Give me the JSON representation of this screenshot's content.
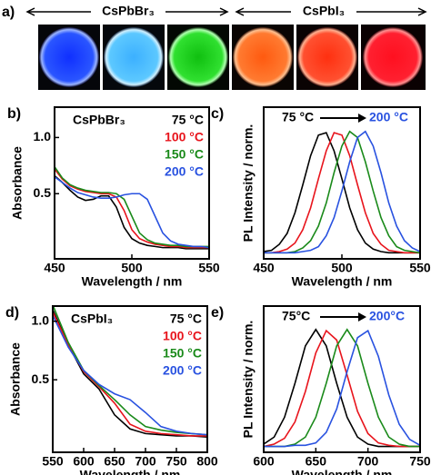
{
  "panel_a": {
    "label": "a)",
    "groups": [
      "CsPbBr₃",
      "CsPbI₃"
    ]
  },
  "chart_data": [
    {
      "type": "line",
      "panel_label": "b)",
      "title": "CsPbBr₃",
      "xlabel": "Wavelength / nm",
      "ylabel": "Absorbance",
      "x": [
        450,
        455,
        460,
        465,
        470,
        475,
        480,
        485,
        490,
        495,
        500,
        505,
        510,
        515,
        520,
        525,
        530,
        535,
        540,
        545,
        550
      ],
      "series": [
        {
          "name": "75 °C",
          "color": "#000000",
          "values": [
            0.66,
            0.6,
            0.53,
            0.47,
            0.44,
            0.45,
            0.48,
            0.48,
            0.38,
            0.2,
            0.1,
            0.06,
            0.04,
            0.03,
            0.02,
            0.02,
            0.02,
            0.01,
            0.01,
            0.01,
            0.01
          ]
        },
        {
          "name": "100 °C",
          "color": "#e8141c",
          "values": [
            0.72,
            0.63,
            0.57,
            0.54,
            0.52,
            0.51,
            0.5,
            0.5,
            0.47,
            0.35,
            0.18,
            0.1,
            0.07,
            0.05,
            0.04,
            0.03,
            0.03,
            0.02,
            0.02,
            0.02,
            0.02
          ]
        },
        {
          "name": "150 °C",
          "color": "#1a8a1a",
          "values": [
            0.74,
            0.64,
            0.58,
            0.55,
            0.53,
            0.52,
            0.51,
            0.51,
            0.5,
            0.45,
            0.3,
            0.15,
            0.09,
            0.06,
            0.05,
            0.04,
            0.04,
            0.03,
            0.03,
            0.03,
            0.03
          ]
        },
        {
          "name": "200 °C",
          "color": "#2952e0",
          "values": [
            0.65,
            0.6,
            0.55,
            0.51,
            0.49,
            0.47,
            0.46,
            0.46,
            0.47,
            0.49,
            0.5,
            0.5,
            0.45,
            0.3,
            0.15,
            0.08,
            0.05,
            0.04,
            0.03,
            0.03,
            0.02
          ]
        }
      ],
      "xlim": [
        450,
        550
      ],
      "xticks": [
        450,
        500,
        550
      ],
      "ylim": [
        -0.08,
        1.27
      ],
      "yticks": [
        0.5,
        {
          "value": 1,
          "label": "1.0"
        }
      ],
      "legend": "upper right"
    },
    {
      "type": "line",
      "panel_label": "c)",
      "xlabel": "Wavelength / nm",
      "ylabel": "PL Intensity / norm.",
      "annotations": [
        "75 °C",
        "200 °C"
      ],
      "x": [
        450,
        455,
        460,
        465,
        470,
        475,
        480,
        485,
        490,
        495,
        500,
        505,
        510,
        515,
        520,
        525,
        530,
        535,
        540,
        545,
        550
      ],
      "series": [
        {
          "color": "#000000",
          "values": [
            0.01,
            0.02,
            0.07,
            0.16,
            0.33,
            0.56,
            0.8,
            0.97,
            0.99,
            0.84,
            0.61,
            0.37,
            0.19,
            0.08,
            0.03,
            0.01,
            0,
            0,
            0,
            0,
            0
          ]
        },
        {
          "color": "#e8141c",
          "values": [
            0,
            0,
            0.01,
            0.03,
            0.08,
            0.19,
            0.37,
            0.61,
            0.84,
            0.99,
            0.97,
            0.8,
            0.56,
            0.33,
            0.16,
            0.07,
            0.02,
            0.01,
            0,
            0,
            0
          ]
        },
        {
          "color": "#1a8a1a",
          "values": [
            0,
            0,
            0,
            0,
            0.01,
            0.04,
            0.1,
            0.22,
            0.41,
            0.66,
            0.88,
            1,
            0.95,
            0.75,
            0.51,
            0.29,
            0.14,
            0.05,
            0.02,
            0.01,
            0
          ]
        },
        {
          "color": "#2952e0",
          "values": [
            0,
            0,
            0,
            0,
            0,
            0.01,
            0.02,
            0.05,
            0.14,
            0.29,
            0.51,
            0.75,
            0.95,
            1,
            0.88,
            0.66,
            0.41,
            0.22,
            0.1,
            0.04,
            0.01
          ]
        }
      ],
      "xlim": [
        450,
        550
      ],
      "xticks": [
        450,
        500,
        550
      ],
      "ylim": [
        -0.05,
        1.2
      ]
    },
    {
      "type": "line",
      "panel_label": "d)",
      "title": "CsPbI₃",
      "xlabel": "Wavelength / nm",
      "ylabel": "Absorbance",
      "x": [
        550,
        575,
        600,
        625,
        650,
        675,
        700,
        725,
        750,
        775,
        800
      ],
      "series": [
        {
          "name": "75 °C",
          "color": "#000000",
          "values": [
            1.1,
            0.8,
            0.55,
            0.42,
            0.2,
            0.08,
            0.04,
            0.03,
            0.02,
            0.02,
            0.01
          ]
        },
        {
          "name": "100 °C",
          "color": "#e8141c",
          "values": [
            1.08,
            0.8,
            0.57,
            0.44,
            0.3,
            0.12,
            0.06,
            0.04,
            0.03,
            0.02,
            0.02
          ]
        },
        {
          "name": "150 °C",
          "color": "#1a8a1a",
          "values": [
            1.14,
            0.82,
            0.58,
            0.45,
            0.33,
            0.2,
            0.1,
            0.07,
            0.05,
            0.04,
            0.03
          ]
        },
        {
          "name": "200 °C",
          "color": "#2952e0",
          "values": [
            1.05,
            0.78,
            0.58,
            0.46,
            0.38,
            0.33,
            0.22,
            0.1,
            0.06,
            0.04,
            0.03
          ]
        }
      ],
      "xlim": [
        550,
        800
      ],
      "xticks": [
        550,
        600,
        650,
        700,
        750,
        800
      ],
      "ylim": [
        -0.12,
        1.13
      ],
      "yticks": [
        0.5,
        {
          "value": 1,
          "label": "1.0"
        }
      ],
      "legend": "upper right"
    },
    {
      "type": "line",
      "panel_label": "e)",
      "xlabel": "Wavelength / nm",
      "ylabel": "PL Intensity / norm.",
      "annotations": [
        "75°C",
        "200°C"
      ],
      "x": [
        600,
        610,
        620,
        630,
        640,
        650,
        660,
        670,
        680,
        690,
        700,
        710,
        720,
        730,
        740,
        750
      ],
      "series": [
        {
          "color": "#000000",
          "values": [
            0.02,
            0.08,
            0.25,
            0.54,
            0.86,
            1,
            0.86,
            0.54,
            0.25,
            0.08,
            0.02,
            0,
            0,
            0,
            0,
            0
          ]
        },
        {
          "color": "#e8141c",
          "values": [
            0,
            0.02,
            0.07,
            0.21,
            0.47,
            0.8,
            0.99,
            0.91,
            0.61,
            0.3,
            0.11,
            0.03,
            0.01,
            0,
            0,
            0
          ]
        },
        {
          "color": "#1a8a1a",
          "values": [
            0,
            0,
            0,
            0.02,
            0.08,
            0.25,
            0.54,
            0.86,
            1,
            0.86,
            0.54,
            0.25,
            0.08,
            0.02,
            0,
            0
          ]
        },
        {
          "color": "#2952e0",
          "values": [
            0,
            0,
            0,
            0.01,
            0.01,
            0.03,
            0.12,
            0.32,
            0.64,
            0.93,
            0.99,
            0.77,
            0.44,
            0.19,
            0.06,
            0.01
          ]
        }
      ],
      "xlim": [
        600,
        750
      ],
      "xticks": [
        600,
        650,
        700,
        750
      ],
      "ylim": [
        -0.05,
        1.2
      ]
    }
  ]
}
